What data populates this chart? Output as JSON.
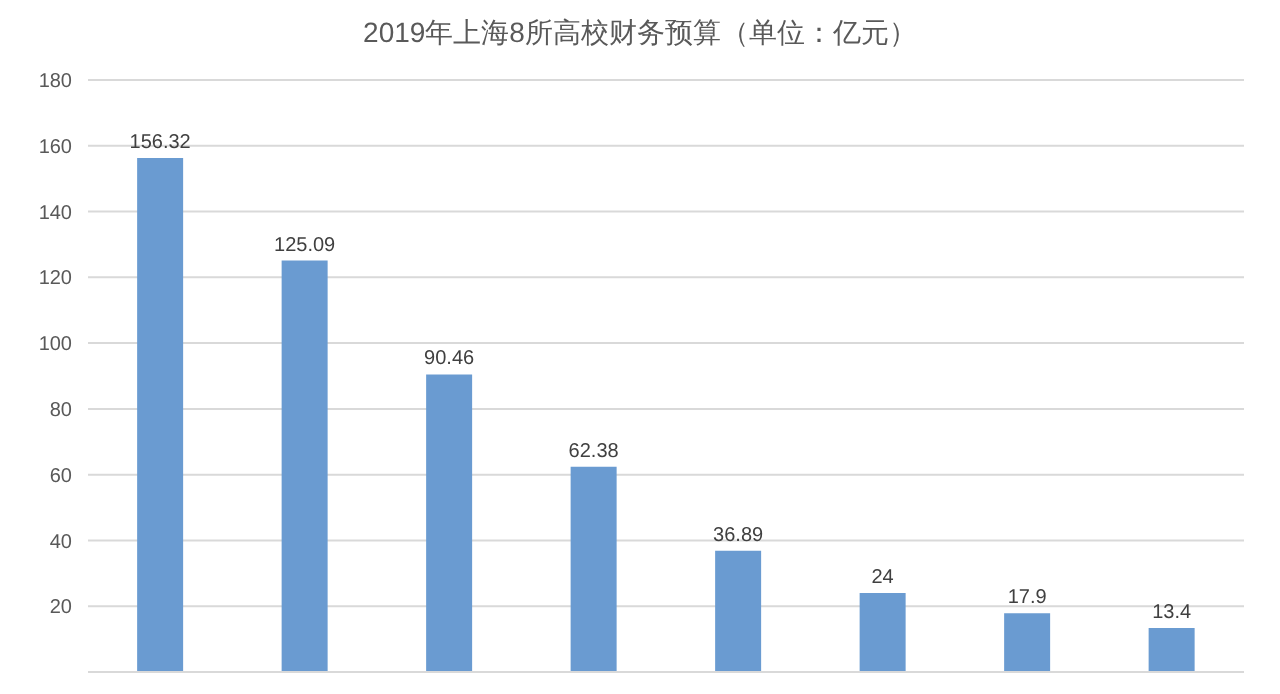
{
  "chart_data": {
    "type": "bar",
    "title": "2019年上海8所高校财务预算（单位：亿元）",
    "categories": [
      null,
      null,
      null,
      null,
      null,
      null,
      null,
      null
    ],
    "values": [
      156.32,
      125.09,
      90.46,
      62.38,
      36.89,
      24,
      17.9,
      13.4
    ],
    "color": "#6a9bd1",
    "ylim": [
      0,
      180
    ],
    "yticks": [
      20,
      40,
      60,
      80,
      100,
      120,
      140,
      160,
      180
    ],
    "grid": "y",
    "data_labels": true,
    "tick_labels": "y"
  }
}
